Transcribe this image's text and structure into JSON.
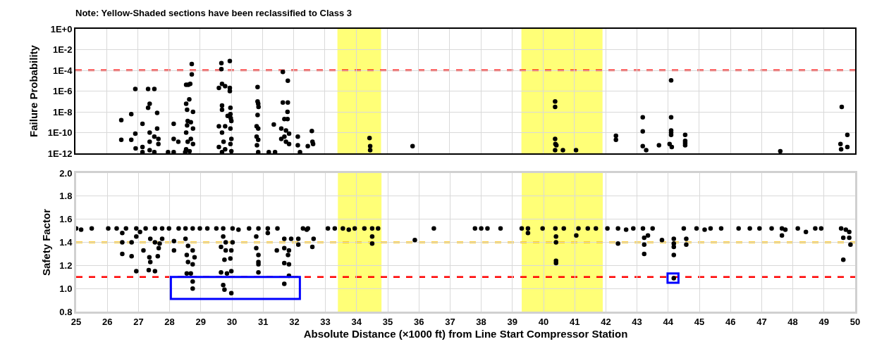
{
  "chart_data": [
    {
      "type": "scatter",
      "title": "Note: Yellow-Shaded sections have been reclassified to Class 3",
      "ylabel": "Failure Probability",
      "log": "y",
      "grid": true,
      "marker": "circle",
      "tick_labels": "y",
      "xlim": [
        25,
        50
      ],
      "xticks": [
        25,
        26,
        27,
        28,
        29,
        30,
        31,
        32,
        33,
        34,
        35,
        36,
        37,
        38,
        39,
        40,
        41,
        42,
        43,
        44,
        45,
        46,
        47,
        48,
        49,
        50
      ],
      "ylim": [
        1e-12,
        1
      ],
      "yticks": [
        {
          "value": 1e-12,
          "label": "1E-12"
        },
        {
          "value": 1e-10,
          "label": "1E-10"
        },
        {
          "value": 1e-08,
          "label": "1E-8"
        },
        {
          "value": 1e-06,
          "label": "1E-6"
        },
        {
          "value": 0.0001,
          "label": "1E-4"
        },
        {
          "value": 0.01,
          "label": "1E-2"
        },
        {
          "value": 1,
          "label": "1E+0"
        }
      ],
      "ref_lines": [
        {
          "axis": "y",
          "value": 0.0001,
          "color": "#ff0000",
          "line_style": "dashed"
        }
      ],
      "bands": [
        {
          "axis": "x",
          "from": 33.4,
          "to": 34.8,
          "color": "#ffff77"
        },
        {
          "axis": "x",
          "from": 39.3,
          "to": 41.9,
          "color": "#ffff77"
        }
      ],
      "series": [
        {
          "color": "#000000",
          "x": [
            26.47,
            26.47,
            26.79,
            26.79,
            26.92,
            26.92,
            26.93,
            27.15,
            27.15,
            27.15,
            27.33,
            27.53,
            27.38,
            27.33,
            27.62,
            27.62,
            27.38,
            27.53,
            27.38,
            27.66,
            27.38,
            27.53,
            27.66,
            28.15,
            28.15,
            28.3,
            27.97,
            28.15,
            28.73,
            28.73,
            28.55,
            28.62,
            28.68,
            28.65,
            28.55,
            28.58,
            28.77,
            28.6,
            28.7,
            28.58,
            28.77,
            28.55,
            28.7,
            28.6,
            28.77,
            28.55,
            28.66,
            28.52,
            29.68,
            29.95,
            29.68,
            29.7,
            29.8,
            29.6,
            29.95,
            29.95,
            29.7,
            29.97,
            29.7,
            29.97,
            29.98,
            29.88,
            30.0,
            29.6,
            29.8,
            29.97,
            29.7,
            30.0,
            29.75,
            29.97,
            29.6,
            29.8,
            30.0,
            29.7,
            30.84,
            30.84,
            30.86,
            30.87,
            30.84,
            30.81,
            30.86,
            30.81,
            30.86,
            30.82,
            30.86,
            31.2,
            31.4,
            31.36,
            31.65,
            31.81,
            31.65,
            31.81,
            31.8,
            31.7,
            31.8,
            31.6,
            31.75,
            31.85,
            31.6,
            31.75,
            31.85,
            31.7,
            32.13,
            32.13,
            32.2,
            32.58,
            32.6,
            32.45,
            32.62,
            34.43,
            34.45,
            34.45,
            35.81,
            40.38,
            40.38,
            40.38,
            40.39,
            40.42,
            40.38,
            40.63,
            41.05,
            42.33,
            42.33,
            43.19,
            43.19,
            43.19,
            43.3,
            43.71,
            44.1,
            44.1,
            44.1,
            44.1,
            44.1,
            44.05,
            44.12,
            44.55,
            44.55,
            44.55,
            44.55,
            47.6,
            49.57,
            49.75,
            49.53,
            49.55,
            49.75
          ],
          "values": [
            1.6e-09,
            2e-11,
            6e-09,
            2e-11,
            1.6e-06,
            8e-11,
            3e-12,
            7e-10,
            4e-12,
            1.3e-12,
            1.6e-06,
            1.6e-06,
            6e-08,
            2.5e-08,
            8e-09,
            2.5e-10,
            1e-10,
            4e-11,
            1.3e-11,
            2.5e-11,
            2e-12,
            1.3e-12,
            8e-12,
            7e-10,
            2.5e-11,
            1.3e-11,
            1.3e-12,
            1.3e-12,
            0.0004,
            4e-05,
            4e-06,
            4e-06,
            5e-06,
            1.6e-07,
            6e-08,
            1.6e-08,
            1e-08,
            1.3e-09,
            1e-09,
            5e-10,
            2.5e-10,
            1e-10,
            2.5e-11,
            1.3e-11,
            8e-12,
            2.5e-12,
            1.6e-12,
            1.3e-12,
            0.0005,
            0.0008,
            0.00013,
            5e-06,
            3e-06,
            2e-06,
            2e-06,
            1e-06,
            4e-08,
            2.5e-08,
            1.6e-08,
            6e-09,
            2.5e-09,
            4e-09,
            1.3e-09,
            4e-10,
            4e-10,
            2.5e-10,
            1e-10,
            2.5e-11,
            1.3e-11,
            8e-12,
            4e-12,
            2.5e-12,
            1.6e-12,
            1.3e-12,
            2.5e-06,
            1e-07,
            6e-08,
            3e-08,
            5e-09,
            4e-10,
            2.5e-10,
            4e-11,
            2e-11,
            6e-12,
            1.3e-12,
            1.3e-12,
            1.3e-12,
            6e-10,
            7e-05,
            1e-05,
            8e-08,
            8e-08,
            1e-08,
            2e-09,
            2e-09,
            2.5e-10,
            1.6e-10,
            8e-11,
            2.5e-11,
            1.3e-11,
            8e-12,
            4e-11,
            4e-11,
            6e-12,
            1.3e-12,
            1.4e-10,
            1.3e-11,
            5e-12,
            8e-12,
            3e-11,
            5e-12,
            2e-12,
            5e-12,
            1e-07,
            3e-08,
            2.5e-11,
            8e-12,
            6e-12,
            2e-12,
            2e-12,
            2e-12,
            5e-11,
            2e-11,
            3e-09,
            1.3e-10,
            5e-12,
            2e-12,
            6e-12,
            1.1e-05,
            3e-09,
            1.6e-10,
            1e-10,
            6e-11,
            8e-12,
            4e-12,
            6e-11,
            1.6e-11,
            1e-11,
            6e-12,
            1.6e-12,
            3e-08,
            6e-11,
            8e-12,
            2.5e-12,
            4e-12
          ]
        }
      ]
    },
    {
      "type": "scatter",
      "xlabel": "Absolute Distance (×1000 ft) from Line Start Compressor Station",
      "ylabel": "Safety Factor",
      "grid": true,
      "marker": "circle",
      "xlim": [
        25,
        50
      ],
      "xticks": [
        25,
        26,
        27,
        28,
        29,
        30,
        31,
        32,
        33,
        34,
        35,
        36,
        37,
        38,
        39,
        40,
        41,
        42,
        43,
        44,
        45,
        46,
        47,
        48,
        49,
        50
      ],
      "ylim": [
        0.8,
        2.0
      ],
      "yticks": [
        {
          "value": 0.8,
          "label": "0.8"
        },
        {
          "value": 1,
          "label": "1.0"
        },
        {
          "value": 1.2,
          "label": "1.2"
        },
        {
          "value": 1.4,
          "label": "1.4"
        },
        {
          "value": 1.6,
          "label": "1.6"
        },
        {
          "value": 1.8,
          "label": "1.8"
        },
        {
          "value": 2,
          "label": "2.0"
        }
      ],
      "ref_lines": [
        {
          "axis": "y",
          "value": 1.4,
          "color": "#ffc000",
          "line_style": "dashed"
        },
        {
          "axis": "y",
          "value": 1.1,
          "color": "#ff0000",
          "line_style": "dashed"
        }
      ],
      "bands": [
        {
          "axis": "x",
          "from": 33.4,
          "to": 34.8,
          "color": "#ffff77"
        },
        {
          "axis": "x",
          "from": 39.3,
          "to": 41.9,
          "color": "#ffff77"
        }
      ],
      "series": [
        {
          "color": "#000000",
          "x": [
            25.0,
            25.16,
            25.5,
            26.03,
            26.3,
            26.6,
            26.93,
            26.48,
            26.48,
            26.48,
            26.78,
            26.78,
            26.93,
            26.93,
            27.16,
            27.35,
            27.38,
            27.33,
            27.53,
            27.65,
            27.62,
            27.68,
            27.23,
            27.53,
            27.76,
            27.38,
            27.53,
            27.76,
            27.05,
            27.98,
            28.29,
            28.14,
            28.14,
            28.51,
            28.74,
            28.51,
            28.59,
            28.55,
            28.74,
            28.59,
            28.74,
            28.55,
            28.68,
            28.74,
            28.74,
            28.8,
            28.97,
            29.21,
            29.5,
            29.72,
            30.02,
            30.21,
            29.72,
            29.65,
            29.8,
            29.76,
            29.65,
            29.84,
            29.98,
            29.72,
            29.76,
            29.98,
            29.98,
            29.95,
            30.02,
            29.8,
            30.55,
            30.85,
            31.15,
            31.46,
            30.78,
            30.78,
            30.85,
            30.85,
            30.85,
            30.85,
            31.15,
            31.44,
            31.68,
            31.9,
            31.68,
            31.83,
            31.8,
            31.68,
            31.83,
            31.83,
            31.68,
            32.13,
            32.13,
            32.28,
            32.4,
            32.44,
            32.62,
            32.58,
            33.08,
            33.3,
            33.56,
            33.75,
            33.94,
            34.25,
            34.5,
            34.69,
            34.5,
            34.5,
            35.87,
            36.48,
            37.8,
            38.0,
            38.2,
            38.62,
            39.3,
            39.5,
            39.5,
            39.97,
            40.38,
            40.65,
            40.4,
            40.4,
            40.4,
            40.4,
            41.05,
            41.12,
            41.42,
            41.68,
            42.05,
            42.39,
            42.39,
            42.65,
            42.88,
            43.19,
            43.5,
            43.23,
            43.23,
            43.23,
            43.35,
            43.8,
            44.18,
            44.18,
            44.18,
            44.18,
            44.18,
            44.5,
            44.58,
            44.58,
            44.91,
            45.17,
            45.36,
            45.7,
            46.26,
            46.62,
            46.93,
            47.32,
            47.65,
            47.65,
            47.76,
            48.16,
            48.42,
            48.72,
            48.91,
            49.55,
            49.7,
            49.62,
            49.81,
            49.81,
            49.85,
            49.62
          ],
          "values": [
            1.52,
            1.51,
            1.52,
            1.52,
            1.52,
            1.52,
            1.52,
            1.48,
            1.4,
            1.3,
            1.4,
            1.28,
            1.15,
            1.45,
            1.33,
            1.27,
            1.23,
            1.16,
            1.15,
            1.35,
            1.28,
            1.39,
            1.52,
            1.52,
            1.52,
            1.43,
            1.4,
            1.43,
            1.49,
            1.52,
            1.52,
            1.33,
            1.41,
            1.52,
            1.52,
            1.43,
            1.37,
            1.29,
            1.33,
            1.23,
            1.21,
            1.13,
            1.13,
            1.06,
            1,
            1.27,
            1.52,
            1.52,
            1.52,
            1.52,
            1.52,
            1.51,
            1.45,
            1.36,
            1.33,
            1.25,
            1.14,
            1.13,
            1.15,
            1.03,
            0.99,
            0.96,
            1.33,
            1.26,
            1.4,
            1.4,
            1.52,
            1.52,
            1.52,
            1.52,
            1.45,
            1.35,
            1.29,
            1.23,
            1.21,
            1.14,
            1.48,
            1.33,
            1.43,
            1.43,
            1.35,
            1.33,
            1.29,
            1.22,
            1.21,
            1.11,
            1.04,
            1.38,
            1.43,
            1.52,
            1.51,
            1.52,
            1.43,
            1.36,
            1.52,
            1.52,
            1.52,
            1.51,
            1.52,
            1.52,
            1.52,
            1.52,
            1.45,
            1.39,
            1.42,
            1.52,
            1.52,
            1.52,
            1.52,
            1.52,
            1.52,
            1.52,
            1.48,
            1.52,
            1.52,
            1.52,
            1.45,
            1.4,
            1.24,
            1.22,
            1.46,
            1.52,
            1.52,
            1.52,
            1.52,
            1.52,
            1.39,
            1.51,
            1.52,
            1.52,
            1.52,
            1.44,
            1.38,
            1.3,
            1.46,
            1.42,
            1.43,
            1.39,
            1.36,
            1.29,
            1.09,
            1.52,
            1.43,
            1.38,
            1.52,
            1.51,
            1.52,
            1.52,
            1.52,
            1.52,
            1.52,
            1.52,
            1.52,
            1.46,
            1.51,
            1.52,
            1.49,
            1.52,
            1.52,
            1.52,
            1.51,
            1.44,
            1.49,
            1.44,
            1.38,
            1.25
          ]
        }
      ]
    }
  ]
}
